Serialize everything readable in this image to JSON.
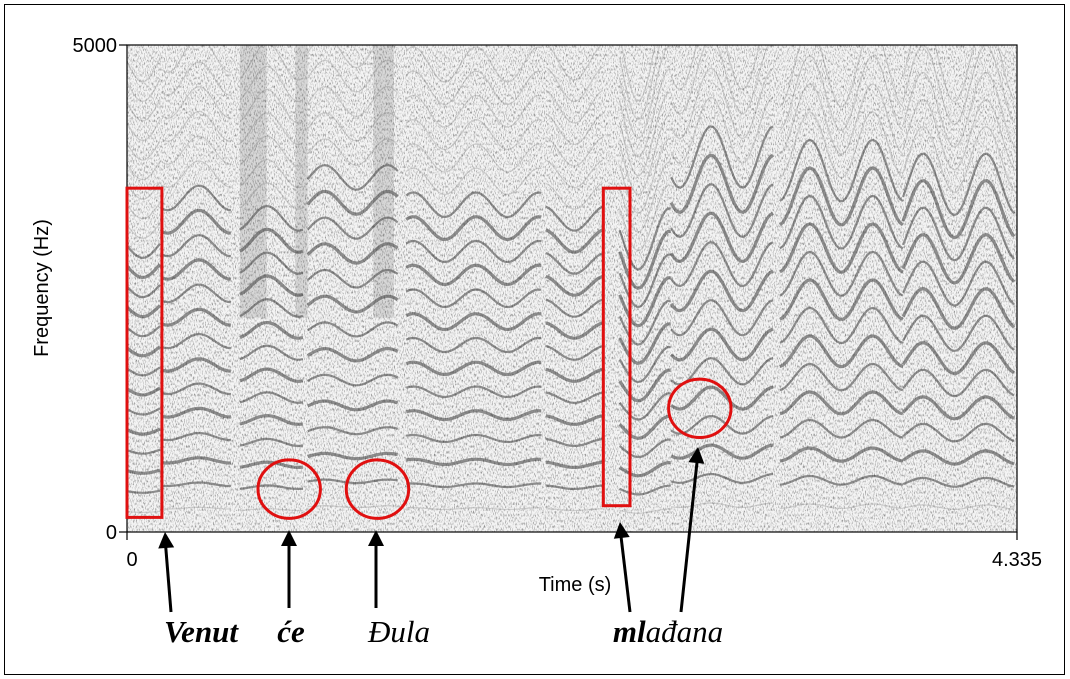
{
  "chart_data": {
    "type": "spectrogram",
    "xlabel": "Time (s)",
    "ylabel": "Frequency (Hz)",
    "xlim": [
      0,
      4.335
    ],
    "ylim": [
      0,
      5000
    ],
    "x_tick_labels": [
      "0",
      "4.335"
    ],
    "y_tick_labels": [
      "0",
      "5000"
    ],
    "colormap": "grayscale",
    "annotation_color": "#e01010",
    "regions": [
      {
        "shape": "rectangle",
        "time_start": 0.0,
        "time_end": 0.17,
        "freq_low": 150,
        "freq_high": 3530
      },
      {
        "shape": "rectangle",
        "time_start": 2.32,
        "time_end": 2.45,
        "freq_low": 270,
        "freq_high": 3530
      },
      {
        "shape": "circle",
        "time": 0.79,
        "freq": 440
      },
      {
        "shape": "circle",
        "time": 1.22,
        "freq": 440
      },
      {
        "shape": "circle",
        "time": 2.79,
        "freq": 1270
      }
    ],
    "word_labels": [
      {
        "text": "Venut",
        "time": 0.16
      },
      {
        "text": "će",
        "time": 0.79
      },
      {
        "text": "Đula",
        "time": 1.22
      },
      {
        "text": "mlađana",
        "time": 2.45
      }
    ]
  },
  "word_text": {
    "w1": "Venut",
    "w2": "će",
    "w3": "Đula",
    "w4_bold": "ml",
    "w4_rest": "ađana"
  }
}
